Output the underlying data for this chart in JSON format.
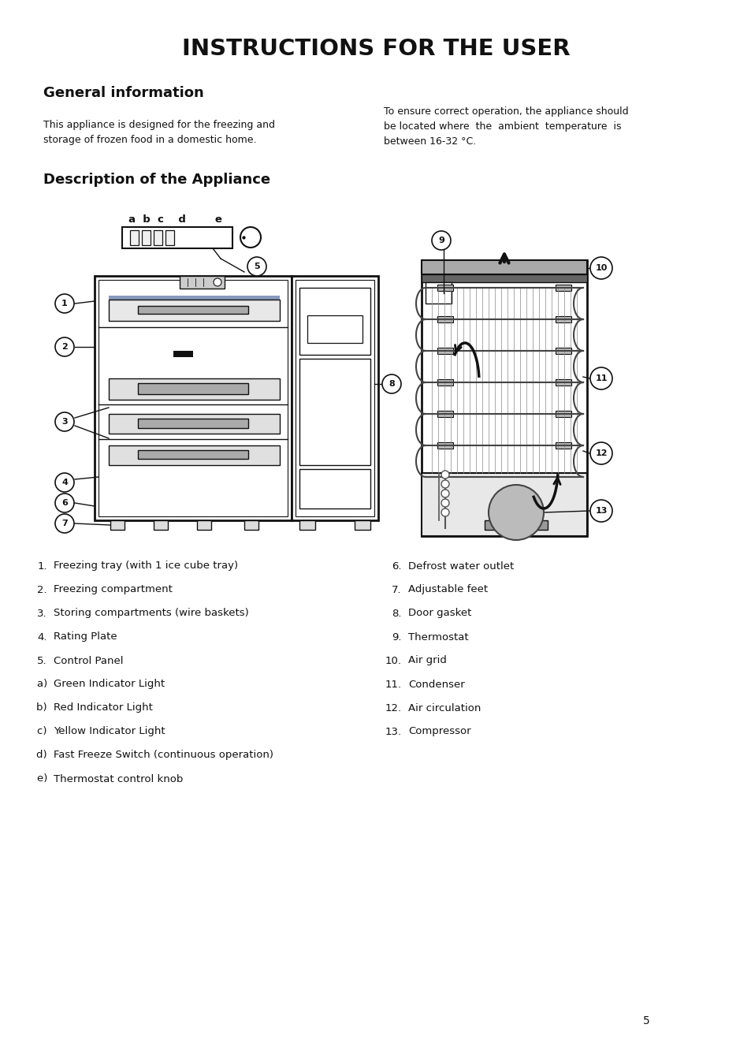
{
  "title": "INSTRUCTIONS FOR THE USER",
  "section1_heading": "General information",
  "section1_text_left": "This appliance is designed for the freezing and\nstorage of frozen food in a domestic home.",
  "section1_text_right": "To ensure correct operation, the appliance should\nbe located where  the  ambient  temperature  is\nbetween 16-32 °C.",
  "section2_heading": "Description of the Appliance",
  "list_left": [
    [
      "1.",
      "Freezing tray (with 1 ice cube tray)"
    ],
    [
      "2.",
      "Freezing compartment"
    ],
    [
      "3.",
      "Storing compartments (wire baskets)"
    ],
    [
      "4.",
      "Rating Plate"
    ],
    [
      "5.",
      "Control Panel"
    ],
    [
      "    a)",
      "Green Indicator Light"
    ],
    [
      "    b)",
      "Red Indicator Light"
    ],
    [
      "    c)",
      "Yellow Indicator Light"
    ],
    [
      "    d)",
      "Fast Freeze Switch (continuous operation)"
    ],
    [
      "    e)",
      "Thermostat control knob"
    ]
  ],
  "list_right": [
    [
      "6.",
      "Defrost water outlet"
    ],
    [
      "7.",
      "Adjustable feet"
    ],
    [
      "8.",
      "Door gasket"
    ],
    [
      "9.",
      "Thermostat"
    ],
    [
      "10.",
      "Air grid"
    ],
    [
      "11.",
      "Condenser"
    ],
    [
      "12.",
      "Air circulation"
    ],
    [
      "13.",
      "Compressor"
    ]
  ],
  "page_number": "5",
  "bg_color": "#ffffff",
  "text_color": "#000000"
}
